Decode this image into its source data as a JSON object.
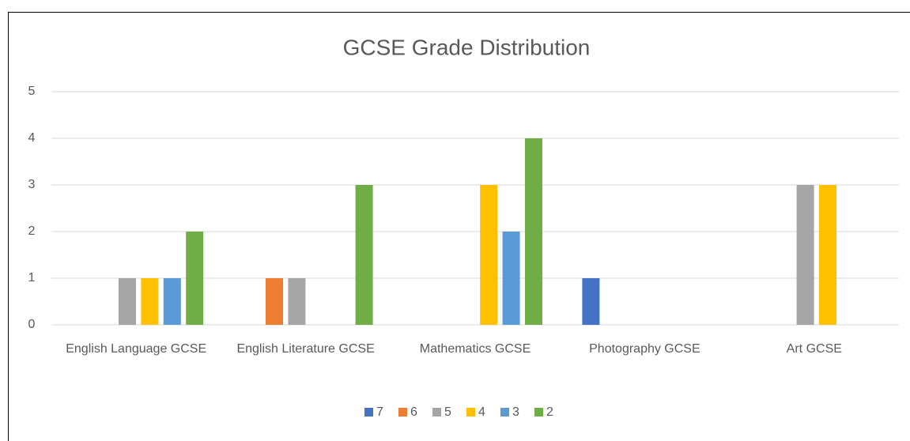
{
  "chart_data": {
    "type": "bar",
    "title": "GCSE Grade Distribution",
    "categories": [
      "English Language GCSE",
      "English Literature GCSE",
      "Mathematics GCSE",
      "Photography GCSE",
      "Art GCSE"
    ],
    "series": [
      {
        "name": "7",
        "color": "#4472c4",
        "values": [
          0,
          0,
          0,
          1,
          0
        ]
      },
      {
        "name": "6",
        "color": "#ed7d31",
        "values": [
          0,
          1,
          0,
          0,
          0
        ]
      },
      {
        "name": "5",
        "color": "#a5a5a5",
        "values": [
          1,
          1,
          0,
          0,
          3
        ]
      },
      {
        "name": "4",
        "color": "#ffc000",
        "values": [
          1,
          0,
          3,
          0,
          3
        ]
      },
      {
        "name": "3",
        "color": "#5b9bd5",
        "values": [
          1,
          0,
          2,
          0,
          0
        ]
      },
      {
        "name": "2",
        "color": "#70ad47",
        "values": [
          2,
          3,
          4,
          0,
          0
        ]
      }
    ],
    "ylim": [
      0,
      5
    ],
    "yticks": [
      0,
      1,
      2,
      3,
      4,
      5
    ],
    "grid": true,
    "legend": "bottom"
  }
}
